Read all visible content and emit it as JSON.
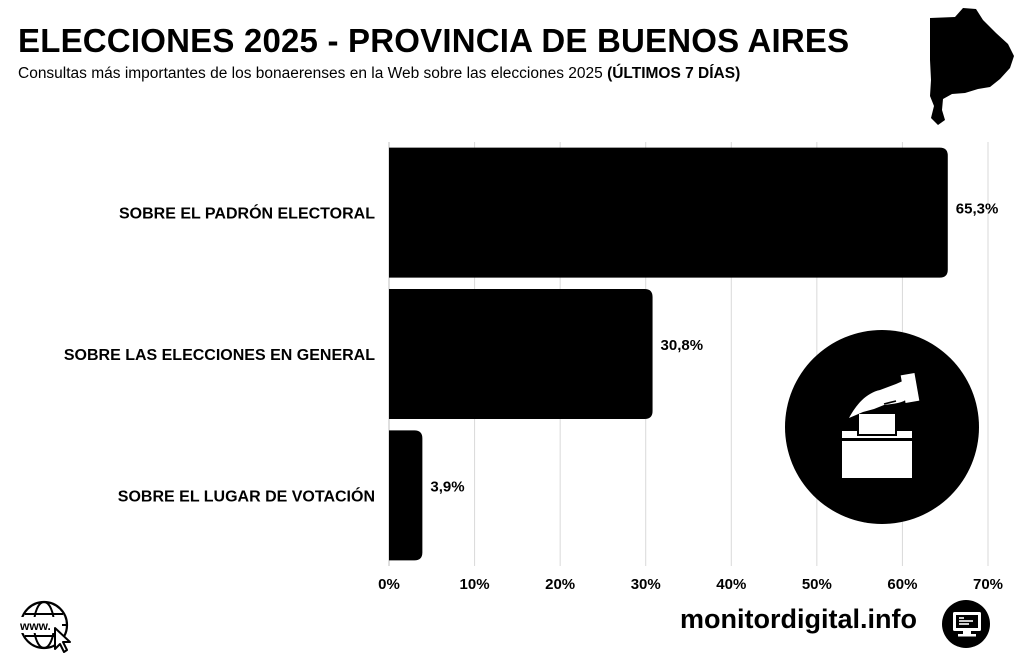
{
  "header": {
    "title": "ELECCIONES 2025 - PROVINCIA DE BUENOS AIRES",
    "subtitle_main": "Consultas más importantes de los bonaerenses en la Web sobre las elecciones 2025 ",
    "subtitle_bold": "(ÚLTIMOS 7 DÍAS)"
  },
  "chart_data": {
    "type": "bar",
    "orientation": "horizontal",
    "title": "ELECCIONES 2025 - PROVINCIA DE BUENOS AIRES",
    "categories": [
      "SOBRE EL PADRÓN ELECTORAL",
      "SOBRE LAS ELECCIONES EN GENERAL",
      "SOBRE EL LUGAR DE VOTACIÓN"
    ],
    "values": [
      65.3,
      30.8,
      3.9
    ],
    "value_labels": [
      "65,3%",
      "30,8%",
      "3,9%"
    ],
    "xlim": [
      0,
      70
    ],
    "xticks": [
      0,
      10,
      20,
      30,
      40,
      50,
      60,
      70
    ],
    "xtick_labels": [
      "0%",
      "10%",
      "20%",
      "30%",
      "40%",
      "50%",
      "60%",
      "70%"
    ],
    "xlabel": "",
    "ylabel": "",
    "grid": true,
    "bar_color": "#000000"
  },
  "footer": {
    "brand": "monitordigital.info",
    "www_icon_text": "www."
  },
  "colors": {
    "ink": "#000000",
    "grid": "#d9d9d9",
    "background": "#ffffff"
  }
}
